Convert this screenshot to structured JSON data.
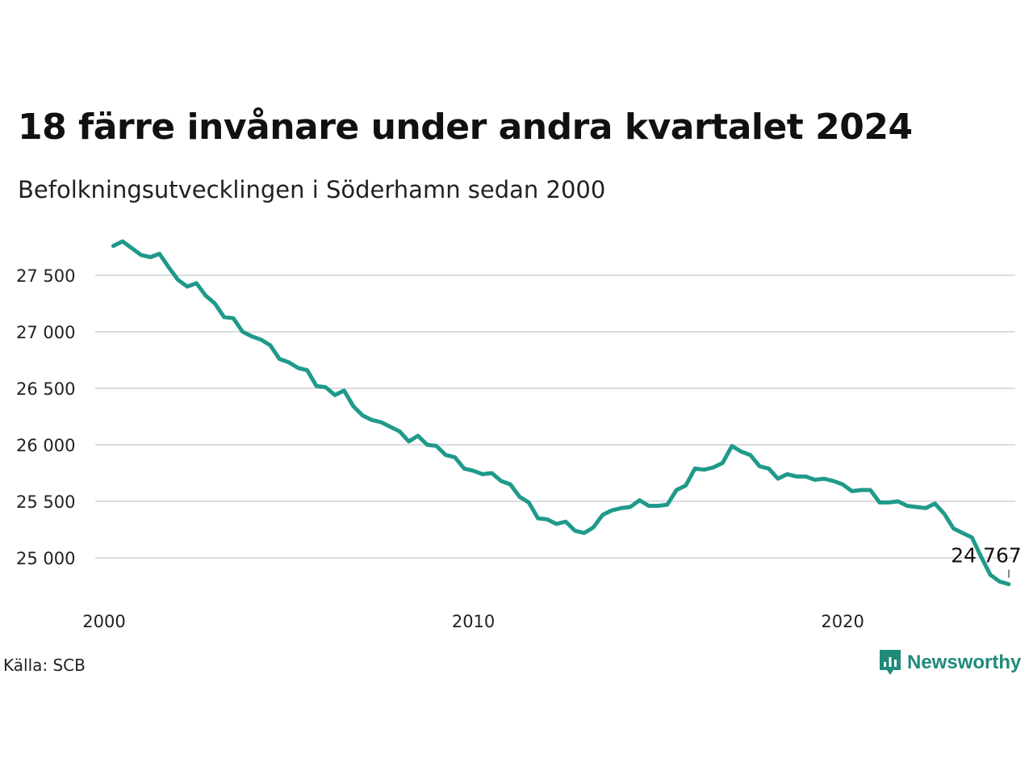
{
  "title": "18 färre invånare under andra kvartalet 2024",
  "subtitle": "Befolkningsutvecklingen i Söderhamn sedan 2000",
  "source": "Källa: SCB",
  "brand": {
    "name": "Newsworthy",
    "icon": "newsworthy-logo-icon",
    "color": "#1f8a7a"
  },
  "chart_data": {
    "type": "line",
    "title": "18 färre invånare under andra kvartalet 2024",
    "subtitle": "Befolkningsutvecklingen i Söderhamn sedan 2000",
    "xlabel": "",
    "ylabel": "",
    "xlim": [
      2000.0,
      2024.6
    ],
    "ylim": [
      24750,
      27850
    ],
    "x_ticks": [
      2000,
      2010,
      2020
    ],
    "x_tick_labels": [
      "2000",
      "2010",
      "2020"
    ],
    "y_ticks": [
      25000,
      25500,
      26000,
      26500,
      27000,
      27500
    ],
    "y_tick_labels": [
      "25 000",
      "25 500",
      "26 000",
      "26 500",
      "27 000",
      "27 500"
    ],
    "grid": "horizontal",
    "line_color": "#1f9a8a",
    "annotation": {
      "label": "24 767",
      "x": 2024.5,
      "y": 24767
    },
    "series": [
      {
        "x": [
          2000.25,
          2000.5,
          2000.75,
          2001.0,
          2001.25,
          2001.5,
          2001.75,
          2002.0,
          2002.25,
          2002.5,
          2002.75,
          2003.0,
          2003.25,
          2003.5,
          2003.75,
          2004.0,
          2004.25,
          2004.5,
          2004.75,
          2005.0,
          2005.25,
          2005.5,
          2005.75,
          2006.0,
          2006.25,
          2006.5,
          2006.75,
          2007.0,
          2007.25,
          2007.5,
          2007.75,
          2008.0,
          2008.25,
          2008.5,
          2008.75,
          2009.0,
          2009.25,
          2009.5,
          2009.75,
          2010.0,
          2010.25,
          2010.5,
          2010.75,
          2011.0,
          2011.25,
          2011.5,
          2011.75,
          2012.0,
          2012.25,
          2012.5,
          2012.75,
          2013.0,
          2013.25,
          2013.5,
          2013.75,
          2014.0,
          2014.25,
          2014.5,
          2014.75,
          2015.0,
          2015.25,
          2015.5,
          2015.75,
          2016.0,
          2016.25,
          2016.5,
          2016.75,
          2017.0,
          2017.25,
          2017.5,
          2017.75,
          2018.0,
          2018.25,
          2018.5,
          2018.75,
          2019.0,
          2019.25,
          2019.5,
          2019.75,
          2020.0,
          2020.25,
          2020.5,
          2020.75,
          2021.0,
          2021.25,
          2021.5,
          2021.75,
          2022.0,
          2022.25,
          2022.5,
          2022.75,
          2023.0,
          2023.25,
          2023.5,
          2023.75,
          2024.0,
          2024.25,
          2024.5
        ],
        "y": [
          27760,
          27800,
          27740,
          27680,
          27660,
          27690,
          27570,
          27460,
          27400,
          27430,
          27320,
          27250,
          27130,
          27120,
          27000,
          26960,
          26930,
          26880,
          26760,
          26730,
          26680,
          26660,
          26520,
          26510,
          26440,
          26480,
          26340,
          26260,
          26220,
          26200,
          26160,
          26120,
          26030,
          26080,
          26000,
          25990,
          25910,
          25890,
          25790,
          25770,
          25740,
          25750,
          25680,
          25650,
          25540,
          25490,
          25350,
          25340,
          25300,
          25320,
          25240,
          25220,
          25270,
          25380,
          25420,
          25440,
          25450,
          25510,
          25460,
          25460,
          25470,
          25600,
          25640,
          25790,
          25780,
          25800,
          25840,
          25990,
          25940,
          25910,
          25810,
          25790,
          25700,
          25740,
          25720,
          25720,
          25690,
          25700,
          25680,
          25650,
          25590,
          25600,
          25600,
          25490,
          25490,
          25500,
          25460,
          25450,
          25440,
          25480,
          25390,
          25260,
          25220,
          25180,
          25010,
          24850,
          24790,
          24767
        ]
      }
    ]
  }
}
